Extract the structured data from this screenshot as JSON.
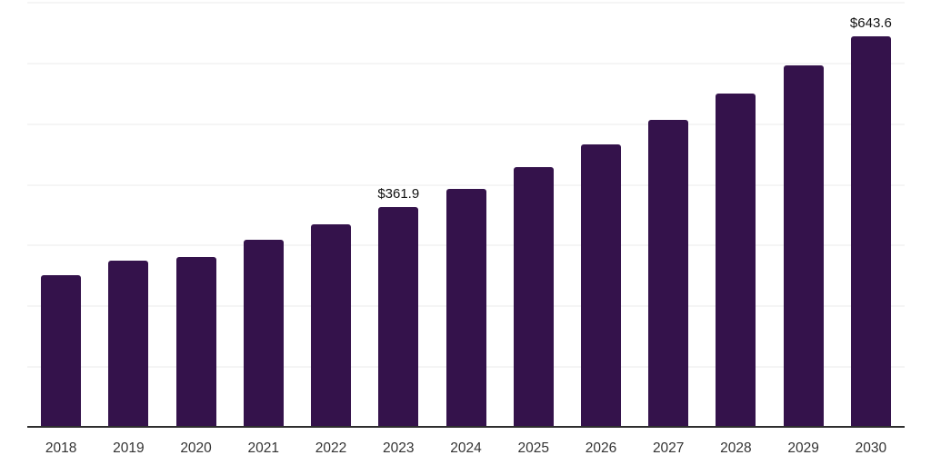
{
  "chart_data": {
    "type": "bar",
    "title": "",
    "xlabel": "",
    "ylabel": "",
    "categories": [
      "2018",
      "2019",
      "2020",
      "2021",
      "2022",
      "2023",
      "2024",
      "2025",
      "2026",
      "2027",
      "2028",
      "2029",
      "2030"
    ],
    "values": [
      250,
      273,
      280,
      308,
      334,
      361.9,
      392,
      428,
      465,
      505,
      549,
      595,
      643.6
    ],
    "annotations": [
      {
        "category": "2023",
        "text": "$361.9"
      },
      {
        "category": "2030",
        "text": "$643.6"
      }
    ],
    "ylim": [
      0,
      700
    ],
    "grid_step": 100,
    "grid": "horizontal-only",
    "y_tick_labels_visible": false,
    "legend": "none",
    "colors": {
      "bar": "#34124B",
      "gridline": "#f5f5f5",
      "axis_line": "#2e2e2e",
      "tick_label": "#333333",
      "data_label": "#111111",
      "background": "#ffffff"
    }
  }
}
